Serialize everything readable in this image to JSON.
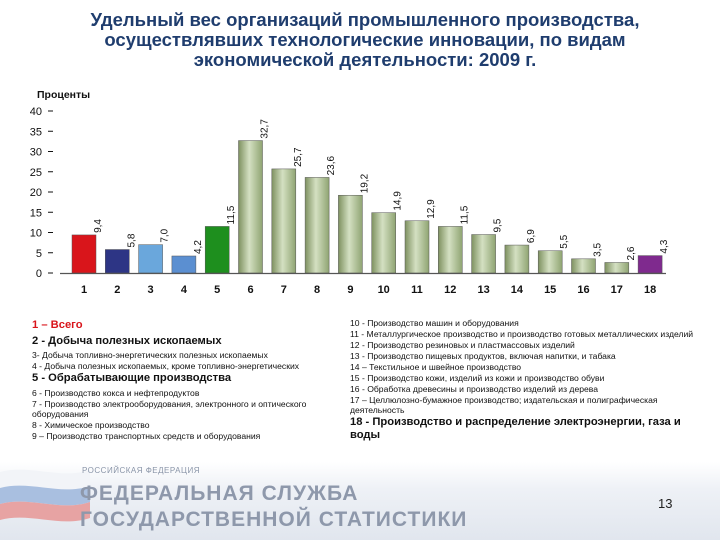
{
  "title_lines": [
    "Удельный вес организаций промышленного производства,",
    "осуществлявших технологические инновации, по видам",
    "экономической деятельности: 2009 г."
  ],
  "chart_data": {
    "type": "bar",
    "ylabel": "Проценты",
    "ylim": [
      0,
      40
    ],
    "yticks": [
      0,
      5,
      10,
      15,
      20,
      25,
      30,
      35,
      40
    ],
    "categories": [
      "1",
      "2",
      "3",
      "4",
      "5",
      "6",
      "7",
      "8",
      "9",
      "10",
      "11",
      "12",
      "13",
      "14",
      "15",
      "16",
      "17",
      "18"
    ],
    "values": [
      9.4,
      5.8,
      7.0,
      4.2,
      11.5,
      32.7,
      25.7,
      23.6,
      19.2,
      14.9,
      12.9,
      11.5,
      9.5,
      6.9,
      5.5,
      3.5,
      2.6,
      4.3
    ],
    "value_labels": [
      "9,4",
      "5,8",
      "7,0",
      "4,2",
      "11,5",
      "32,7",
      "25,7",
      "23,6",
      "19,2",
      "14,9",
      "12,9",
      "11,5",
      "9,5",
      "6,9",
      "5,5",
      "3,5",
      "2,6",
      "4,3"
    ],
    "bar_colors": [
      "#d9151b",
      "#2d3585",
      "#6aa7dc",
      "#5b8fd1",
      "#1e8f1e",
      "#a3b888",
      "#a3b888",
      "#a3b888",
      "#a3b888",
      "#a3b888",
      "#a3b888",
      "#a3b888",
      "#a3b888",
      "#a3b888",
      "#a3b888",
      "#a3b888",
      "#a3b888",
      "#7f2a8e"
    ],
    "grid": false
  },
  "legend_left": [
    {
      "text": "1 – Всего",
      "size": "big",
      "color": "#d9151b"
    },
    {
      "text": "2 - Добыча полезных ископаемых",
      "size": "big",
      "color": "#111111"
    },
    {
      "text": "3- Добыча топливно-энергетических полезных ископаемых",
      "size": "small",
      "color": "#111111"
    },
    {
      "text": "4 - Добыча полезных ископаемых, кроме топливно-энергетических",
      "size": "small",
      "color": "#111111"
    },
    {
      "text": "5 - Обрабатывающие производства",
      "size": "big",
      "color": "#111111"
    },
    {
      "text": "6 - Производство кокса и нефтепродуктов",
      "size": "small",
      "color": "#111111"
    },
    {
      "text": "7 - Производство электрооборудования, электронного и оптического оборудования",
      "size": "small",
      "color": "#111111"
    },
    {
      "text": "8 - Химическое производство",
      "size": "small",
      "color": "#111111"
    },
    {
      "text": "9 – Производство транспортных средств и оборудования",
      "size": "small",
      "color": "#111111"
    }
  ],
  "legend_right": [
    {
      "text": "10 - Производство машин и оборудования",
      "size": "small",
      "color": "#111111"
    },
    {
      "text": "11 - Металлургическое производство и производство готовых металлических изделий",
      "size": "small",
      "color": "#111111"
    },
    {
      "text": "12 - Производство резиновых и пластмассовых изделий",
      "size": "small",
      "color": "#111111"
    },
    {
      "text": "13 - Производство пищевых продуктов, включая напитки, и табака",
      "size": "small",
      "color": "#111111"
    },
    {
      "text": "14 – Текстильное и швейное производство",
      "size": "small",
      "color": "#111111"
    },
    {
      "text": "15 - Производство кожи, изделий из кожи и производство обуви",
      "size": "small",
      "color": "#111111"
    },
    {
      "text": "16 - Обработка древесины и производство изделий из дерева",
      "size": "small",
      "color": "#111111"
    },
    {
      "text": "17 – Целлюлозно-бумажное производство; издательская и полиграфическая деятельность",
      "size": "small",
      "color": "#111111"
    },
    {
      "text": "18 - Производство и распределение электроэнергии, газа и воды",
      "size": "big",
      "color": "#111111"
    }
  ],
  "footer": {
    "org_small": "РОССИЙСКАЯ ФЕДЕРАЦИЯ",
    "line1": "ФЕДЕРАЛЬНАЯ СЛУЖБА",
    "line2": "ГОСУДАРСТВЕННОЙ СТАТИСТИКИ",
    "page_number": "13"
  }
}
